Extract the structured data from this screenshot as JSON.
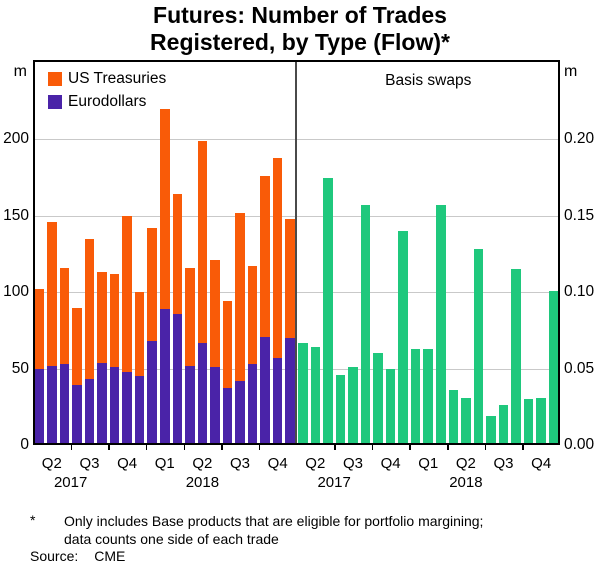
{
  "title": {
    "line1": "Futures: Number of Trades",
    "line2": "Registered, by Type (Flow)*"
  },
  "legend": {
    "us_treasuries": "US Treasuries",
    "eurodollars": "Eurodollars"
  },
  "panels": {
    "right_label": "Basis swaps"
  },
  "axes": {
    "left": {
      "unit": "m",
      "tick_values": [
        0,
        50,
        100,
        150,
        200
      ],
      "tick_labels": [
        "0",
        "50",
        "100",
        "150",
        "200"
      ],
      "max": 252
    },
    "right": {
      "unit": "m",
      "tick_values": [
        0,
        0.05,
        0.1,
        0.15,
        0.2
      ],
      "tick_labels": [
        "0.00",
        "0.05",
        "0.10",
        "0.15",
        "0.20"
      ],
      "max": 0.252
    },
    "x": {
      "quarter_labels": [
        "Q2",
        "Q3",
        "Q4",
        "Q1",
        "Q2",
        "Q3",
        "Q4"
      ],
      "year_labels": [
        "2017",
        "2018"
      ]
    }
  },
  "footnote": {
    "marker": "*",
    "line1": "Only includes Base products that are eligible for portfolio margining;",
    "line2": "data counts one side of each trade"
  },
  "source": {
    "label": "Source:",
    "value": "CME"
  },
  "colors": {
    "us_treasuries": "#F95B08",
    "eurodollars": "#4A23A8",
    "basis_swaps": "#1FC87D",
    "gridline": "#c9c9c9",
    "frame": "#000000"
  },
  "chart_data": [
    {
      "type": "bar",
      "panel": "left",
      "stacked": true,
      "x_months": [
        "Apr 2017",
        "May 2017",
        "Jun 2017",
        "Jul 2017",
        "Aug 2017",
        "Sep 2017",
        "Oct 2017",
        "Nov 2017",
        "Dec 2017",
        "Jan 2018",
        "Feb 2018",
        "Mar 2018",
        "Apr 2018",
        "May 2018",
        "Jun 2018",
        "Jul 2018",
        "Aug 2018",
        "Sep 2018",
        "Oct 2018",
        "Nov 2018",
        "Dec 2018"
      ],
      "series": [
        {
          "name": "Eurodollars",
          "color_key": "eurodollars",
          "values": [
            50,
            52,
            53,
            39,
            43,
            54,
            51,
            48,
            45,
            68,
            89,
            86,
            52,
            67,
            51,
            37,
            42,
            53,
            71,
            57,
            70
          ]
        },
        {
          "name": "US Treasuries",
          "color_key": "us_treasuries",
          "values": [
            52,
            94,
            63,
            51,
            92,
            59,
            61,
            102,
            55,
            74,
            131,
            78,
            64,
            132,
            70,
            57,
            110,
            64,
            105,
            131,
            78
          ]
        }
      ],
      "ylabel_unit": "m",
      "ylim": [
        0,
        252
      ],
      "yticks": [
        0,
        50,
        100,
        150,
        200
      ],
      "xticks_quarters": [
        "Q2",
        "Q3",
        "Q4",
        "Q1",
        "Q2",
        "Q3",
        "Q4"
      ],
      "years": [
        "2017",
        "2018"
      ],
      "grid": true
    },
    {
      "type": "bar",
      "panel": "right",
      "stacked": false,
      "title": "Basis swaps",
      "x_months": [
        "Apr 2017",
        "May 2017",
        "Jun 2017",
        "Jul 2017",
        "Aug 2017",
        "Sep 2017",
        "Oct 2017",
        "Nov 2017",
        "Dec 2017",
        "Jan 2018",
        "Feb 2018",
        "Mar 2018",
        "Apr 2018",
        "May 2018",
        "Jun 2018",
        "Jul 2018",
        "Aug 2018",
        "Sep 2018",
        "Oct 2018",
        "Nov 2018",
        "Dec 2018"
      ],
      "series": [
        {
          "name": "Basis swaps",
          "color_key": "basis_swaps",
          "values": [
            0.067,
            0.064,
            0.175,
            0.046,
            0.051,
            0.157,
            0.06,
            0.05,
            0.14,
            0.063,
            0.063,
            0.157,
            0.036,
            0.031,
            0.128,
            0.019,
            0.026,
            0.115,
            0.03,
            0.031,
            0.101
          ]
        }
      ],
      "ylabel_unit": "m",
      "ylim": [
        0,
        0.252
      ],
      "yticks": [
        0,
        0.05,
        0.1,
        0.15,
        0.2
      ],
      "xticks_quarters": [
        "Q2",
        "Q3",
        "Q4",
        "Q1",
        "Q2",
        "Q3",
        "Q4"
      ],
      "years": [
        "2017",
        "2018"
      ],
      "grid": true
    }
  ]
}
